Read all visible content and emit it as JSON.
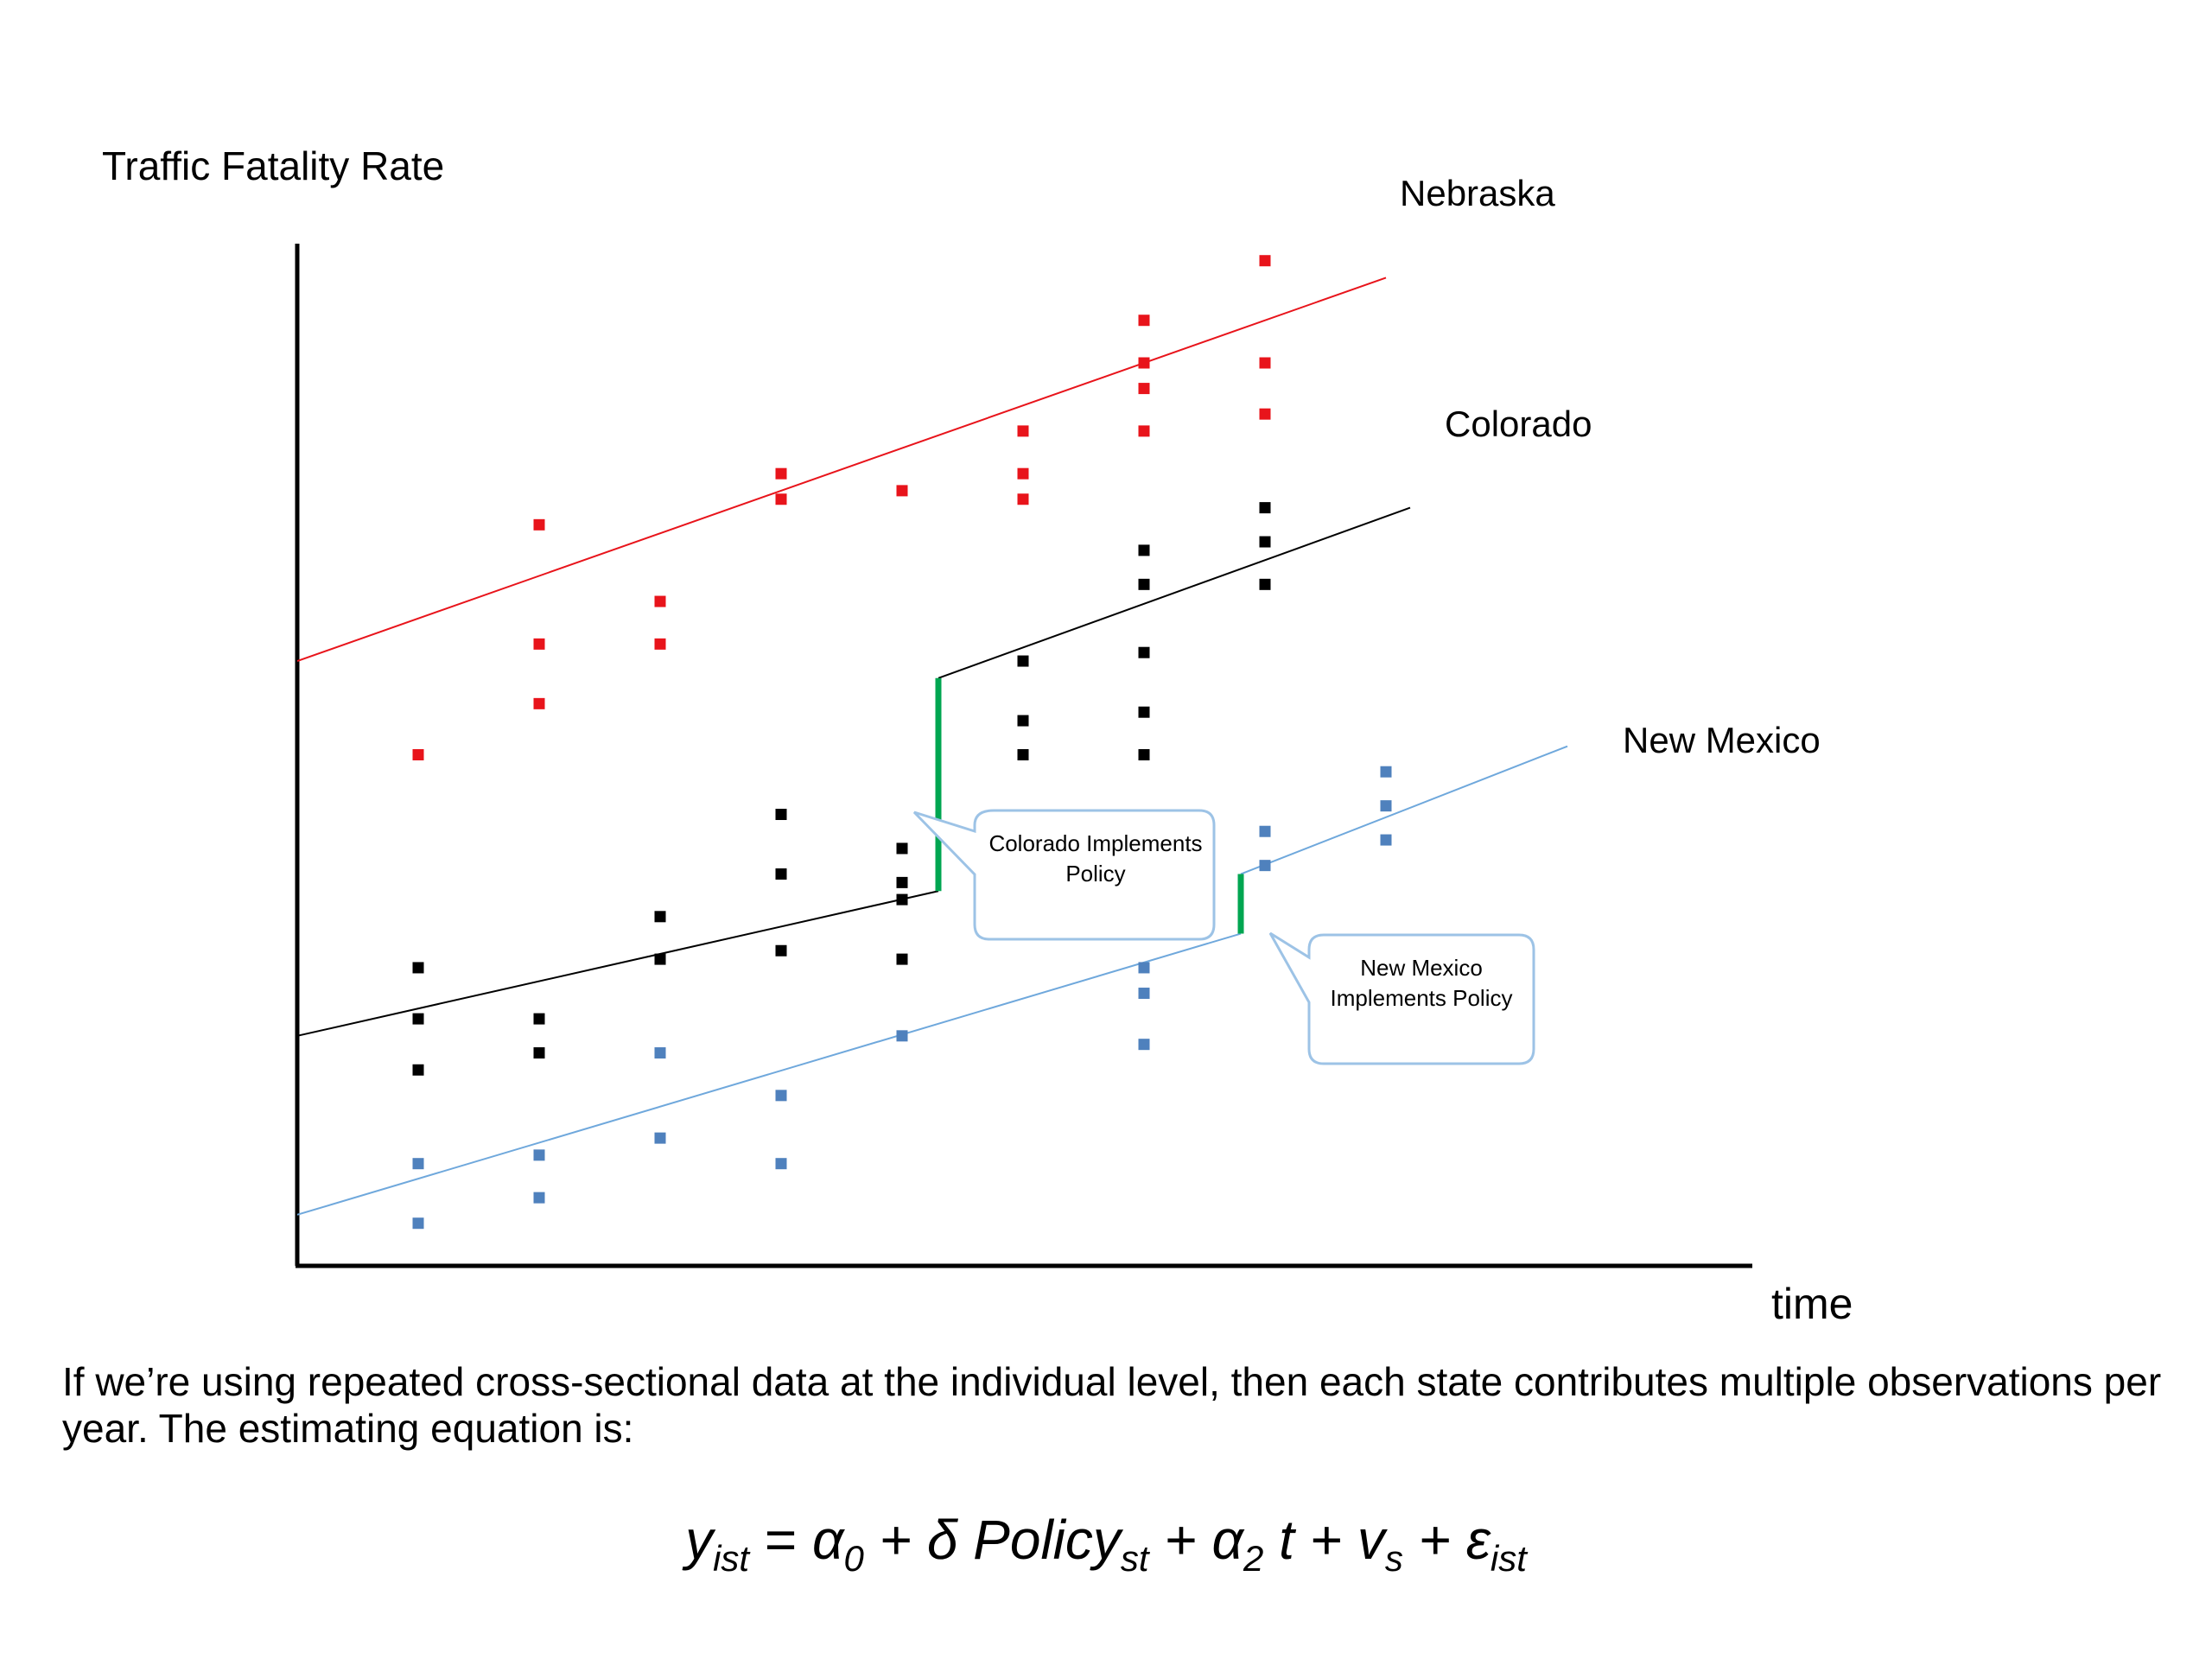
{
  "chart_data": {
    "type": "scatter",
    "ylabel": "Traffic Fatality Rate",
    "xlabel": "time",
    "xlim": [
      0,
      12
    ],
    "ylim": [
      0,
      12
    ],
    "series": [
      {
        "name": "Nebraska",
        "color": "#e8141b",
        "points": [
          [
            1,
            6
          ],
          [
            2,
            8.7
          ],
          [
            2,
            7.3
          ],
          [
            2,
            6.6
          ],
          [
            3,
            7.8
          ],
          [
            3,
            7.3
          ],
          [
            4,
            9.3
          ],
          [
            4,
            9
          ],
          [
            5,
            9.1
          ],
          [
            6,
            9.8
          ],
          [
            6,
            9.3
          ],
          [
            6,
            9
          ],
          [
            7,
            11.1
          ],
          [
            7,
            10.6
          ],
          [
            7,
            10.3
          ],
          [
            7,
            9.8
          ],
          [
            8,
            11.8
          ],
          [
            8,
            10.6
          ],
          [
            8,
            10
          ]
        ],
        "trend": {
          "x": [
            0,
            9
          ],
          "y": [
            7.1,
            11.6
          ]
        }
      },
      {
        "name": "Colorado",
        "color": "#000000",
        "points": [
          [
            1,
            3.5
          ],
          [
            1,
            2.9
          ],
          [
            1,
            2.3
          ],
          [
            2,
            2.9
          ],
          [
            2,
            2.5
          ],
          [
            3,
            4.1
          ],
          [
            3,
            3.6
          ],
          [
            4,
            5.3
          ],
          [
            4,
            4.6
          ],
          [
            4,
            3.7
          ],
          [
            5,
            4.9
          ],
          [
            5,
            4.5
          ],
          [
            5,
            4.3
          ],
          [
            5,
            3.6
          ],
          [
            6,
            7.1
          ],
          [
            6,
            6.4
          ],
          [
            6,
            6
          ],
          [
            7,
            8.4
          ],
          [
            7,
            8
          ],
          [
            7,
            7.2
          ],
          [
            7,
            6.5
          ],
          [
            7,
            6
          ],
          [
            8,
            8.9
          ],
          [
            8,
            8.5
          ],
          [
            8,
            8
          ]
        ],
        "trend_pre": {
          "x": [
            0,
            5.3
          ],
          "y": [
            2.7,
            4.4
          ]
        },
        "trend_post": {
          "x": [
            5.3,
            9.2
          ],
          "y": [
            6.9,
            8.9
          ]
        }
      },
      {
        "name": "New Mexico",
        "color": "#4f81bd",
        "points": [
          [
            1,
            1.2
          ],
          [
            1,
            0.5
          ],
          [
            2,
            1.3
          ],
          [
            2,
            0.8
          ],
          [
            3,
            2.5
          ],
          [
            3,
            1.5
          ],
          [
            4,
            2
          ],
          [
            4,
            1.2
          ],
          [
            5,
            2.7
          ],
          [
            7,
            3.5
          ],
          [
            7,
            3.2
          ],
          [
            7,
            2.6
          ],
          [
            8,
            5.1
          ],
          [
            8,
            4.7
          ],
          [
            9,
            5.8
          ],
          [
            9,
            5.4
          ],
          [
            9,
            5
          ]
        ],
        "trend_pre": {
          "x": [
            0,
            7.8
          ],
          "y": [
            0.6,
            3.9
          ]
        },
        "trend_post": {
          "x": [
            7.8,
            10.5
          ],
          "y": [
            4.6,
            6.1
          ]
        }
      }
    ],
    "annotations": [
      {
        "text": "Colorado Implements Policy",
        "x": 5.3,
        "y_from": 4.4,
        "y_to": 6.9,
        "color": "#00a651"
      },
      {
        "text": "New Mexico Implements Policy",
        "x": 7.8,
        "y_from": 3.9,
        "y_to": 4.6,
        "color": "#00a651"
      }
    ]
  },
  "callouts": {
    "colorado": "Colorado Implements Policy",
    "new_mexico": "New Mexico Implements Policy"
  },
  "caption": "If we’re using repeated cross-sectional data at the individual level, then each state contributes multiple observations per year. The estimating equation is:",
  "equation": {
    "y": "y",
    "y_sub": "ist",
    "eq": " = ",
    "a0": "α",
    "a0_sub": "0",
    "plus1": " + δ Policy",
    "policy_sub": "st",
    "plus2": " + α",
    "a2_sub": "2",
    "t": " t + v",
    "v_sub": "s",
    "plus3": " + ε",
    "e_sub": "ist"
  }
}
